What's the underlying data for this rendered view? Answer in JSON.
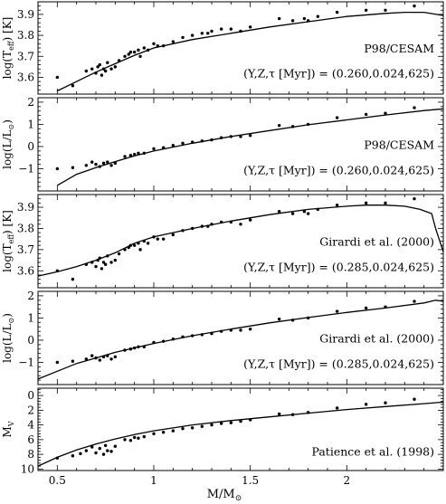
{
  "figure": {
    "xlabel_main": "M/M",
    "xlabel_sub": "⊙",
    "x_tick_labels": [
      "0.5",
      "1",
      "1.5",
      "2"
    ]
  },
  "chart_data": [
    {
      "type": "scatter",
      "ylabel": {
        "main": "log(T",
        "sub": "eff",
        "tail": ") [K]"
      },
      "ylim": [
        3.52,
        3.96
      ],
      "y_ticks": [
        3.6,
        3.7,
        3.8,
        3.9
      ],
      "y_tick_labels": [
        "3.6",
        "3.7",
        "3.8",
        "3.9"
      ],
      "xlim": [
        0.4,
        2.5
      ],
      "annotation_line1": "P98/CESAM",
      "annotation_line2": "(Y,Z,τ [Myr]) = (0.260,0.024,625)",
      "model": {
        "x": [
          0.5,
          0.6,
          0.7,
          0.8,
          0.9,
          1.0,
          1.2,
          1.4,
          1.6,
          1.8,
          2.0,
          2.2,
          2.3,
          2.4,
          2.5
        ],
        "y": [
          3.535,
          3.58,
          3.625,
          3.665,
          3.705,
          3.74,
          3.78,
          3.81,
          3.84,
          3.865,
          3.89,
          3.905,
          3.91,
          3.91,
          3.895
        ]
      },
      "points": {
        "x": [
          0.5,
          0.58,
          0.65,
          0.68,
          0.7,
          0.71,
          0.72,
          0.73,
          0.74,
          0.75,
          0.76,
          0.78,
          0.8,
          0.82,
          0.85,
          0.87,
          0.88,
          0.9,
          0.92,
          0.93,
          0.95,
          0.97,
          1.0,
          1.02,
          1.05,
          1.1,
          1.15,
          1.2,
          1.25,
          1.28,
          1.3,
          1.35,
          1.4,
          1.45,
          1.5,
          1.65,
          1.72,
          1.78,
          1.8,
          1.85,
          1.95,
          2.1,
          2.2,
          2.35
        ],
        "y": [
          3.6,
          3.56,
          3.63,
          3.64,
          3.62,
          3.65,
          3.66,
          3.61,
          3.64,
          3.63,
          3.67,
          3.64,
          3.65,
          3.68,
          3.7,
          3.71,
          3.72,
          3.72,
          3.73,
          3.7,
          3.74,
          3.73,
          3.76,
          3.75,
          3.75,
          3.77,
          3.79,
          3.8,
          3.81,
          3.81,
          3.82,
          3.83,
          3.83,
          3.82,
          3.84,
          3.88,
          3.87,
          3.88,
          3.87,
          3.89,
          3.91,
          3.92,
          3.92,
          3.94
        ]
      }
    },
    {
      "type": "scatter",
      "ylabel": {
        "main": "log(L/L",
        "sub": "⊙",
        "tail": ")"
      },
      "ylim": [
        -2.0,
        2.2
      ],
      "y_ticks": [
        -1,
        0,
        1,
        2
      ],
      "y_tick_labels": [
        "−1",
        "0",
        "1",
        "2"
      ],
      "xlim": [
        0.4,
        2.5
      ],
      "annotation_line1": "P98/CESAM",
      "annotation_line2": "(Y,Z,τ [Myr]) = (0.260,0.024,625)",
      "model": {
        "x": [
          0.5,
          0.6,
          0.7,
          0.8,
          0.9,
          1.0,
          1.2,
          1.4,
          1.6,
          1.8,
          2.0,
          2.2,
          2.4,
          2.5
        ],
        "y": [
          -1.75,
          -1.25,
          -0.95,
          -0.68,
          -0.42,
          -0.2,
          0.15,
          0.45,
          0.72,
          0.98,
          1.2,
          1.42,
          1.62,
          1.7
        ]
      },
      "points": {
        "x": [
          0.5,
          0.58,
          0.65,
          0.68,
          0.7,
          0.72,
          0.74,
          0.76,
          0.78,
          0.8,
          0.85,
          0.88,
          0.9,
          0.92,
          0.95,
          1.0,
          1.05,
          1.1,
          1.15,
          1.2,
          1.25,
          1.3,
          1.35,
          1.4,
          1.45,
          1.5,
          1.65,
          1.72,
          1.8,
          1.95,
          2.1,
          2.2,
          2.35
        ],
        "y": [
          -1.0,
          -0.95,
          -0.85,
          -0.7,
          -0.8,
          -0.9,
          -0.75,
          -0.7,
          -0.85,
          -0.75,
          -0.45,
          -0.4,
          -0.35,
          -0.3,
          -0.3,
          -0.1,
          -0.05,
          0.05,
          0.15,
          0.2,
          0.25,
          0.3,
          0.4,
          0.45,
          0.45,
          0.5,
          0.95,
          0.9,
          1.0,
          1.3,
          1.45,
          1.5,
          1.75
        ]
      }
    },
    {
      "type": "scatter",
      "ylabel": {
        "main": "log(T",
        "sub": "eff",
        "tail": ") [K]"
      },
      "ylim": [
        3.52,
        3.96
      ],
      "y_ticks": [
        3.6,
        3.7,
        3.8,
        3.9
      ],
      "y_tick_labels": [
        "3.6",
        "3.7",
        "3.8",
        "3.9"
      ],
      "xlim": [
        0.4,
        2.5
      ],
      "annotation_line1": "Girardi et al. (2000)",
      "annotation_line2": "(Y,Z,τ [Myr]) = (0.285,0.024,625)",
      "model": {
        "x": [
          0.4,
          0.5,
          0.6,
          0.7,
          0.8,
          0.9,
          1.0,
          1.2,
          1.4,
          1.6,
          1.8,
          2.0,
          2.1,
          2.2,
          2.3,
          2.38,
          2.44,
          2.46,
          2.5
        ],
        "y": [
          3.575,
          3.595,
          3.62,
          3.65,
          3.685,
          3.73,
          3.76,
          3.8,
          3.835,
          3.865,
          3.89,
          3.905,
          3.91,
          3.91,
          3.905,
          3.89,
          3.87,
          3.8,
          3.69
        ]
      },
      "points": {
        "x": [
          0.5,
          0.58,
          0.65,
          0.68,
          0.7,
          0.71,
          0.72,
          0.73,
          0.74,
          0.75,
          0.76,
          0.78,
          0.8,
          0.82,
          0.85,
          0.87,
          0.88,
          0.9,
          0.92,
          0.93,
          0.95,
          0.97,
          1.0,
          1.02,
          1.05,
          1.1,
          1.15,
          1.2,
          1.25,
          1.28,
          1.3,
          1.35,
          1.4,
          1.45,
          1.5,
          1.65,
          1.72,
          1.78,
          1.8,
          1.85,
          1.95,
          2.1,
          2.2,
          2.35
        ],
        "y": [
          3.6,
          3.56,
          3.63,
          3.64,
          3.62,
          3.65,
          3.66,
          3.61,
          3.64,
          3.63,
          3.67,
          3.64,
          3.65,
          3.68,
          3.7,
          3.71,
          3.72,
          3.72,
          3.73,
          3.7,
          3.74,
          3.73,
          3.76,
          3.75,
          3.75,
          3.77,
          3.79,
          3.8,
          3.81,
          3.81,
          3.82,
          3.83,
          3.83,
          3.82,
          3.84,
          3.88,
          3.87,
          3.88,
          3.87,
          3.89,
          3.91,
          3.92,
          3.92,
          3.94
        ]
      }
    },
    {
      "type": "scatter",
      "ylabel": {
        "main": "log(L/L",
        "sub": "⊙",
        "tail": ")"
      },
      "ylim": [
        -2.0,
        2.2
      ],
      "y_ticks": [
        -1,
        0,
        1,
        2
      ],
      "y_tick_labels": [
        "−1",
        "0",
        "1",
        "2"
      ],
      "xlim": [
        0.4,
        2.5
      ],
      "annotation_line1": "Girardi et al. (2000)",
      "annotation_line2": "(Y,Z,τ [Myr]) = (0.285,0.024,625)",
      "model": {
        "x": [
          0.4,
          0.5,
          0.6,
          0.7,
          0.8,
          0.9,
          1.0,
          1.2,
          1.4,
          1.6,
          1.8,
          2.0,
          2.2,
          2.4,
          2.46,
          2.5
        ],
        "y": [
          -1.75,
          -1.4,
          -1.05,
          -0.8,
          -0.55,
          -0.35,
          -0.15,
          0.2,
          0.5,
          0.78,
          1.02,
          1.25,
          1.45,
          1.68,
          1.8,
          1.75
        ]
      },
      "points": {
        "x": [
          0.5,
          0.58,
          0.65,
          0.68,
          0.7,
          0.72,
          0.74,
          0.76,
          0.78,
          0.8,
          0.85,
          0.88,
          0.9,
          0.92,
          0.95,
          1.0,
          1.05,
          1.1,
          1.15,
          1.2,
          1.25,
          1.3,
          1.35,
          1.4,
          1.45,
          1.5,
          1.65,
          1.72,
          1.8,
          1.95,
          2.1,
          2.2,
          2.35
        ],
        "y": [
          -1.0,
          -0.95,
          -0.85,
          -0.7,
          -0.8,
          -0.9,
          -0.75,
          -0.7,
          -0.85,
          -0.75,
          -0.45,
          -0.4,
          -0.35,
          -0.3,
          -0.3,
          -0.1,
          -0.05,
          0.05,
          0.15,
          0.2,
          0.25,
          0.3,
          0.4,
          0.45,
          0.45,
          0.5,
          0.95,
          0.9,
          1.0,
          1.3,
          1.45,
          1.5,
          1.75
        ]
      }
    },
    {
      "type": "scatter",
      "ylabel": {
        "main": "M",
        "sub": "V",
        "tail": ""
      },
      "ylim": [
        10.2,
        -1.0
      ],
      "y_ticks": [
        0,
        2,
        4,
        6,
        8,
        10
      ],
      "y_tick_labels": [
        "0",
        "2",
        "4",
        "6",
        "8",
        "10"
      ],
      "xlim": [
        0.4,
        2.5
      ],
      "annotation_line1": "Patience et al. (1998)",
      "annotation_line2": "",
      "model": {
        "x": [
          0.4,
          0.5,
          0.6,
          0.7,
          0.8,
          0.9,
          1.0,
          1.2,
          1.4,
          1.6,
          1.8,
          2.0,
          2.2,
          2.4,
          2.5
        ],
        "y": [
          9.6,
          8.4,
          7.4,
          6.6,
          5.9,
          5.3,
          4.8,
          4.0,
          3.4,
          2.9,
          2.4,
          1.9,
          1.5,
          1.1,
          0.9
        ]
      },
      "points": {
        "x": [
          0.5,
          0.58,
          0.62,
          0.65,
          0.68,
          0.7,
          0.72,
          0.74,
          0.75,
          0.76,
          0.78,
          0.8,
          0.85,
          0.88,
          0.9,
          0.92,
          0.95,
          1.0,
          1.05,
          1.1,
          1.15,
          1.2,
          1.25,
          1.3,
          1.35,
          1.4,
          1.45,
          1.5,
          1.65,
          1.72,
          1.8,
          1.95,
          2.1,
          2.2,
          2.35
        ],
        "y": [
          8.5,
          8.2,
          7.9,
          7.5,
          7.0,
          7.8,
          7.2,
          8.0,
          6.8,
          7.5,
          7.6,
          6.9,
          6.0,
          6.1,
          5.7,
          5.8,
          5.6,
          5.2,
          5.0,
          4.8,
          4.5,
          4.4,
          4.2,
          4.0,
          3.8,
          3.7,
          3.5,
          3.3,
          2.5,
          2.6,
          2.3,
          1.7,
          1.2,
          1.0,
          0.5
        ]
      }
    }
  ]
}
